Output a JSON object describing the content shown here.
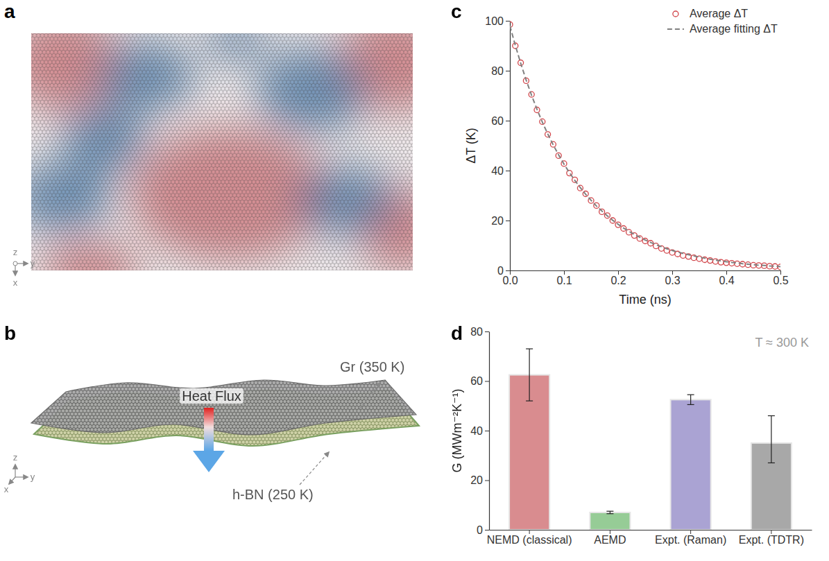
{
  "panels": {
    "a": {
      "label": "a",
      "axis_labels": [
        "z",
        "y",
        "x"
      ]
    },
    "b": {
      "label": "b",
      "top_layer": "Gr (350 K)",
      "bottom_layer": "h-BN (250 K)",
      "flux": "Heat Flux",
      "axis_labels": [
        "z",
        "y",
        "x"
      ]
    }
  },
  "chart_data": [
    {
      "panel_label": "c",
      "type": "line",
      "x_label": "Time (ns)",
      "y_label": "ΔT (K)",
      "x": [
        0,
        0.01,
        0.02,
        0.03,
        0.04,
        0.05,
        0.06,
        0.07,
        0.08,
        0.09,
        0.1,
        0.11,
        0.12,
        0.13,
        0.14,
        0.15,
        0.16,
        0.17,
        0.18,
        0.19,
        0.2,
        0.21,
        0.22,
        0.23,
        0.24,
        0.25,
        0.26,
        0.27,
        0.28,
        0.29,
        0.3,
        0.31,
        0.32,
        0.33,
        0.34,
        0.35,
        0.36,
        0.37,
        0.38,
        0.39,
        0.4,
        0.41,
        0.42,
        0.43,
        0.44,
        0.45,
        0.46,
        0.47,
        0.48,
        0.49,
        0.5
      ],
      "series": [
        {
          "name": "Average ΔT",
          "type": "scatter",
          "marker": "circle",
          "color": "#d1454a",
          "values": [
            98.5,
            90.0,
            83.2,
            76.0,
            70.5,
            64.3,
            59.6,
            54.5,
            50.5,
            46.0,
            42.8,
            39.0,
            36.3,
            33.0,
            30.7,
            28.0,
            26.0,
            23.5,
            22.0,
            20.0,
            18.3,
            16.8,
            15.3,
            14.0,
            12.8,
            11.8,
            10.9,
            9.8,
            8.8,
            8.0,
            7.2,
            6.6,
            6.0,
            5.6,
            5.1,
            4.7,
            4.3,
            4.0,
            3.6,
            3.3,
            3.1,
            2.9,
            2.7,
            2.5,
            2.3,
            2.1,
            2.0,
            1.9,
            1.7,
            1.6,
            1.4
          ]
        },
        {
          "name": "Average fitting ΔT",
          "type": "line",
          "line_style": "dashed",
          "color": "#808080",
          "values": [
            98,
            90.2,
            83.0,
            76.3,
            70.2,
            64.6,
            59.4,
            54.7,
            50.3,
            46.3,
            42.6,
            39.2,
            36.1,
            33.2,
            30.5,
            28.1,
            25.8,
            23.8,
            21.9,
            20.1,
            18.5,
            17.0,
            15.7,
            14.4,
            13.3,
            12.2,
            11.2,
            10.3,
            9.5,
            8.7,
            8.0,
            7.4,
            6.8,
            6.3,
            5.8,
            5.3,
            4.9,
            4.5,
            4.1,
            3.8,
            3.5,
            3.2,
            3.0,
            2.7,
            2.5,
            2.3,
            2.1,
            2.0,
            1.8,
            1.7,
            1.5
          ]
        }
      ],
      "xlim": [
        0,
        0.5
      ],
      "xticks": [
        {
          "value": 0,
          "label": "0.0"
        },
        0.1,
        0.2,
        0.3,
        0.4,
        0.5
      ],
      "ylim": [
        0,
        100
      ],
      "yticks": [
        0,
        20,
        40,
        60,
        80,
        100
      ],
      "legend": "upper right"
    },
    {
      "panel_label": "d",
      "type": "bar",
      "y_label": "G (MWm⁻²K⁻¹)",
      "categories": [
        "NEMD (classical)",
        "AEMD",
        "Expt. (Raman)",
        "Expt. (TDTR)"
      ],
      "values": [
        62.5,
        7,
        52.5,
        35
      ],
      "error_minus": [
        10.5,
        0.5,
        2,
        8
      ],
      "error_plus": [
        10.5,
        0.5,
        2,
        11
      ],
      "colors": [
        "#d98c8f",
        "#96cc96",
        "#aaa3d3",
        "#a8a8a8"
      ],
      "ylim": [
        0,
        80
      ],
      "yticks": [
        0,
        20,
        40,
        60,
        80
      ],
      "annotation": "T ≈ 300 K"
    }
  ]
}
